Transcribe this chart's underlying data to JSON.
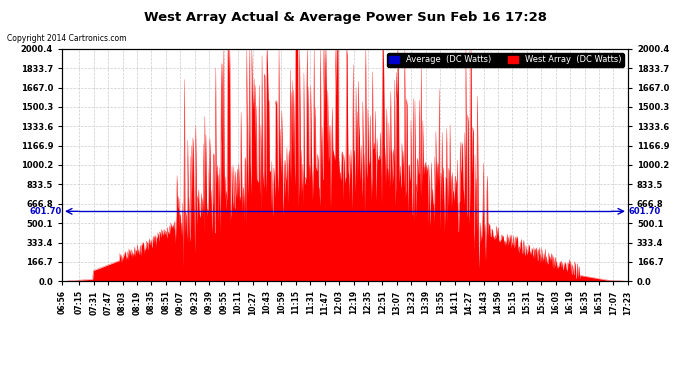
{
  "title": "West Array Actual & Average Power Sun Feb 16 17:28",
  "copyright": "Copyright 2014 Cartronics.com",
  "avg_label": "Average  (DC Watts)",
  "west_label": "West Array  (DC Watts)",
  "avg_value": 601.7,
  "y_max": 2000.4,
  "y_min": 0.0,
  "yticks": [
    0.0,
    166.7,
    333.4,
    500.1,
    666.8,
    833.5,
    1000.2,
    1166.9,
    1333.6,
    1500.3,
    1667.0,
    1833.7,
    2000.4
  ],
  "ytick_labels": [
    "0.0",
    "166.7",
    "333.4",
    "500.1",
    "666.8",
    "833.5",
    "1000.2",
    "1166.9",
    "1333.6",
    "1500.3",
    "1667.0",
    "1833.7",
    "2000.4"
  ],
  "x_labels": [
    "06:56",
    "07:15",
    "07:31",
    "07:47",
    "08:03",
    "08:19",
    "08:35",
    "08:51",
    "09:07",
    "09:23",
    "09:39",
    "09:55",
    "10:11",
    "10:27",
    "10:43",
    "10:59",
    "11:15",
    "11:31",
    "11:47",
    "12:03",
    "12:19",
    "12:35",
    "12:51",
    "13:07",
    "13:23",
    "13:39",
    "13:55",
    "14:11",
    "14:27",
    "14:43",
    "14:59",
    "15:15",
    "15:31",
    "15:47",
    "16:03",
    "16:19",
    "16:35",
    "16:51",
    "17:07",
    "17:23"
  ],
  "bg_color": "#ffffff",
  "fill_color": "#ff0000",
  "avg_line_color": "#0000cc",
  "grid_color": "#cccccc",
  "avg_value_label": "601.70"
}
